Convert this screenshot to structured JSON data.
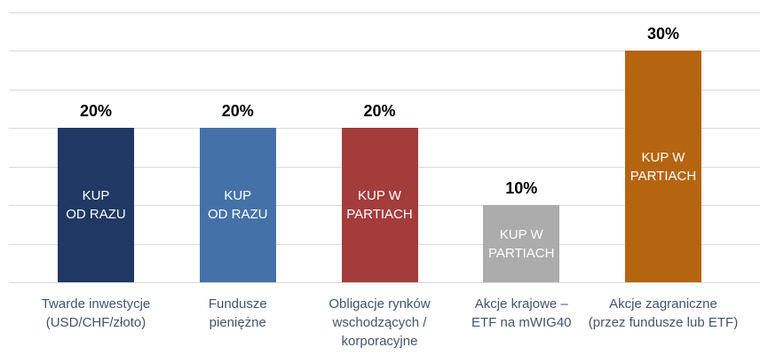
{
  "chart_data": {
    "type": "bar",
    "title": "",
    "xlabel": "",
    "ylabel": "",
    "ylim": [
      0,
      35
    ],
    "grid": true,
    "gridline_step": 5,
    "gridline_color": "#d9d9d9",
    "background_color": "#ffffff",
    "legend": "none",
    "categories": [
      "Twarde inwestycje\n(USD/CHF/złoto)",
      "Fundusze\npieniężne",
      "Obligacje rynków\nwschodzących /\nkorporacyjne",
      "Akcje krajowe –\nETF na mWIG40",
      "Akcje zagraniczne\n(przez fundusze lub ETF)"
    ],
    "values": [
      20,
      20,
      20,
      10,
      30
    ],
    "value_labels": [
      "20%",
      "20%",
      "20%",
      "10%",
      "30%"
    ],
    "bar_labels": [
      "KUP\nOD RAZU",
      "KUP\nOD RAZU",
      "KUP W\nPARTIACH",
      "KUP W\nPARTIACH",
      "KUP W\nPARTIACH"
    ],
    "bar_colors": [
      "#1F3864",
      "#4472A8",
      "#A43C3C",
      "#ACACAC",
      "#B5650F"
    ],
    "value_label_color": "#000000",
    "bar_label_color": "#ffffff",
    "category_label_color": "#44546A"
  }
}
